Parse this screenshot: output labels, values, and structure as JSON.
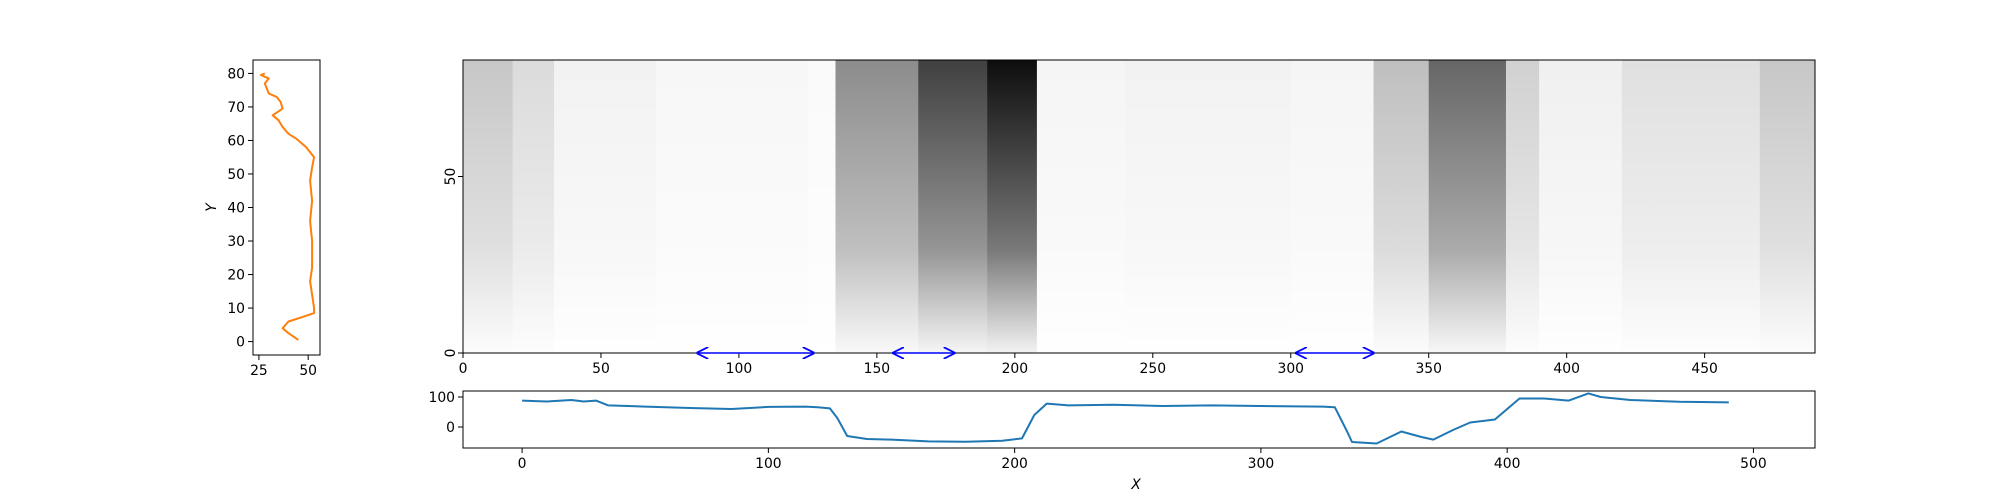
{
  "colors": {
    "profile_right": "#ff7f0e",
    "profile_bottom": "#1f77b4",
    "arrow": "#0000ff",
    "frame": "#000000"
  },
  "chart_data": [
    {
      "id": "main-heatmap",
      "type": "heatmap",
      "colormap": "gray_r",
      "xlim": [
        0,
        490
      ],
      "ylim": [
        0,
        83
      ],
      "xticks": [
        0,
        50,
        100,
        150,
        200,
        250,
        300,
        350,
        400,
        450
      ],
      "yticks": [
        0,
        50
      ],
      "intensity_bands": [
        {
          "x0": 0,
          "x1": 18,
          "level": 0.22
        },
        {
          "x0": 18,
          "x1": 33,
          "level": 0.14
        },
        {
          "x0": 33,
          "x1": 70,
          "level": 0.05
        },
        {
          "x0": 70,
          "x1": 125,
          "level": 0.03
        },
        {
          "x0": 125,
          "x1": 135,
          "level": 0.02
        },
        {
          "x0": 135,
          "x1": 165,
          "level": 0.45
        },
        {
          "x0": 165,
          "x1": 190,
          "level": 0.75
        },
        {
          "x0": 190,
          "x1": 208,
          "level": 0.95
        },
        {
          "x0": 208,
          "x1": 240,
          "level": 0.04
        },
        {
          "x0": 240,
          "x1": 300,
          "level": 0.05
        },
        {
          "x0": 300,
          "x1": 330,
          "level": 0.04
        },
        {
          "x0": 330,
          "x1": 350,
          "level": 0.25
        },
        {
          "x0": 350,
          "x1": 378,
          "level": 0.6
        },
        {
          "x0": 378,
          "x1": 390,
          "level": 0.18
        },
        {
          "x0": 390,
          "x1": 420,
          "level": 0.06
        },
        {
          "x0": 420,
          "x1": 470,
          "level": 0.12
        },
        {
          "x0": 470,
          "x1": 490,
          "level": 0.22
        }
      ],
      "arrows": [
        {
          "x0": 85,
          "x1": 127
        },
        {
          "x0": 156,
          "x1": 178
        },
        {
          "x0": 302,
          "x1": 330
        }
      ]
    },
    {
      "id": "left-profile",
      "type": "line",
      "xlim": [
        22,
        56
      ],
      "ylim": [
        -4,
        84
      ],
      "xticks": [
        25,
        50
      ],
      "yticks": [
        0,
        10,
        20,
        30,
        40,
        50,
        60,
        70,
        80
      ],
      "ylabel": "Y",
      "series": [
        {
          "points": [
            [
              45,
              0.5
            ],
            [
              40,
              2.5
            ],
            [
              37,
              4
            ],
            [
              40,
              6
            ],
            [
              48,
              7.5
            ],
            [
              53,
              8.5
            ],
            [
              53,
              10
            ],
            [
              52,
              14
            ],
            [
              51,
              18
            ],
            [
              52,
              22
            ],
            [
              52,
              30
            ],
            [
              51,
              36
            ],
            [
              52,
              42
            ],
            [
              51,
              48
            ],
            [
              52,
              52
            ],
            [
              53,
              55
            ],
            [
              49,
              58
            ],
            [
              44,
              60.5
            ],
            [
              40,
              62
            ],
            [
              37,
              64
            ],
            [
              35,
              66
            ],
            [
              32,
              67.5
            ],
            [
              37,
              69.5
            ],
            [
              36,
              71.5
            ],
            [
              34,
              73
            ],
            [
              30,
              74
            ],
            [
              28,
              77
            ],
            [
              30,
              78.5
            ],
            [
              26,
              79.5
            ],
            [
              28,
              80
            ]
          ]
        }
      ]
    },
    {
      "id": "bottom-profile",
      "type": "line",
      "xlim": [
        -24,
        525
      ],
      "ylim": [
        -70,
        120
      ],
      "xticks": [
        0,
        100,
        200,
        300,
        400,
        500
      ],
      "yticks": [
        0,
        100
      ],
      "xlabel": "X",
      "series": [
        {
          "points": [
            [
              0,
              88
            ],
            [
              10,
              85
            ],
            [
              20,
              90
            ],
            [
              25,
              85
            ],
            [
              30,
              88
            ],
            [
              35,
              72
            ],
            [
              50,
              68
            ],
            [
              70,
              63
            ],
            [
              85,
              60
            ],
            [
              100,
              67
            ],
            [
              115,
              68
            ],
            [
              120,
              66
            ],
            [
              125,
              62
            ],
            [
              128,
              30
            ],
            [
              132,
              -30
            ],
            [
              140,
              -40
            ],
            [
              150,
              -42
            ],
            [
              165,
              -48
            ],
            [
              180,
              -49
            ],
            [
              195,
              -46
            ],
            [
              203,
              -38
            ],
            [
              208,
              40
            ],
            [
              213,
              78
            ],
            [
              222,
              72
            ],
            [
              240,
              74
            ],
            [
              260,
              70
            ],
            [
              280,
              72
            ],
            [
              300,
              70
            ],
            [
              325,
              68
            ],
            [
              330,
              66
            ],
            [
              335,
              -15
            ],
            [
              337,
              -50
            ],
            [
              347,
              -55
            ],
            [
              352,
              -35
            ],
            [
              357,
              -15
            ],
            [
              365,
              -33
            ],
            [
              370,
              -42
            ],
            [
              378,
              -10
            ],
            [
              385,
              15
            ],
            [
              395,
              25
            ],
            [
              400,
              60
            ],
            [
              405,
              95
            ],
            [
              415,
              95
            ],
            [
              425,
              88
            ],
            [
              433,
              112
            ],
            [
              438,
              100
            ],
            [
              450,
              90
            ],
            [
              470,
              84
            ],
            [
              490,
              82
            ]
          ]
        }
      ]
    }
  ]
}
